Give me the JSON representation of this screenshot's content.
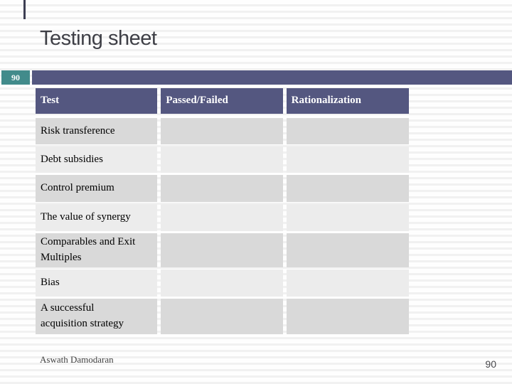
{
  "slide": {
    "title": "Testing sheet",
    "slide_number_badge": "90",
    "footer_author": "Aswath Damodaran",
    "footer_page_number": "90"
  },
  "table": {
    "headers": [
      "Test",
      "Passed/Failed",
      "Rationalization"
    ],
    "rows": [
      {
        "test": "Risk transference",
        "passed_failed": "",
        "rationalization": ""
      },
      {
        "test": "Debt subsidies",
        "passed_failed": "",
        "rationalization": ""
      },
      {
        "test": "Control premium",
        "passed_failed": "",
        "rationalization": ""
      },
      {
        "test": "The value of synergy",
        "passed_failed": "",
        "rationalization": ""
      },
      {
        "test": "Comparables and Exit Multiples",
        "passed_failed": "",
        "rationalization": ""
      },
      {
        "test": "Bias",
        "passed_failed": "",
        "rationalization": ""
      },
      {
        "test": "A successful acquisition strategy",
        "passed_failed": "",
        "rationalization": ""
      }
    ]
  },
  "colors": {
    "accent_purple": "#545780",
    "accent_teal": "#428b8b",
    "row_dark": "#d9d9d9",
    "row_light": "#ececec",
    "title_text": "#3e3f46"
  }
}
